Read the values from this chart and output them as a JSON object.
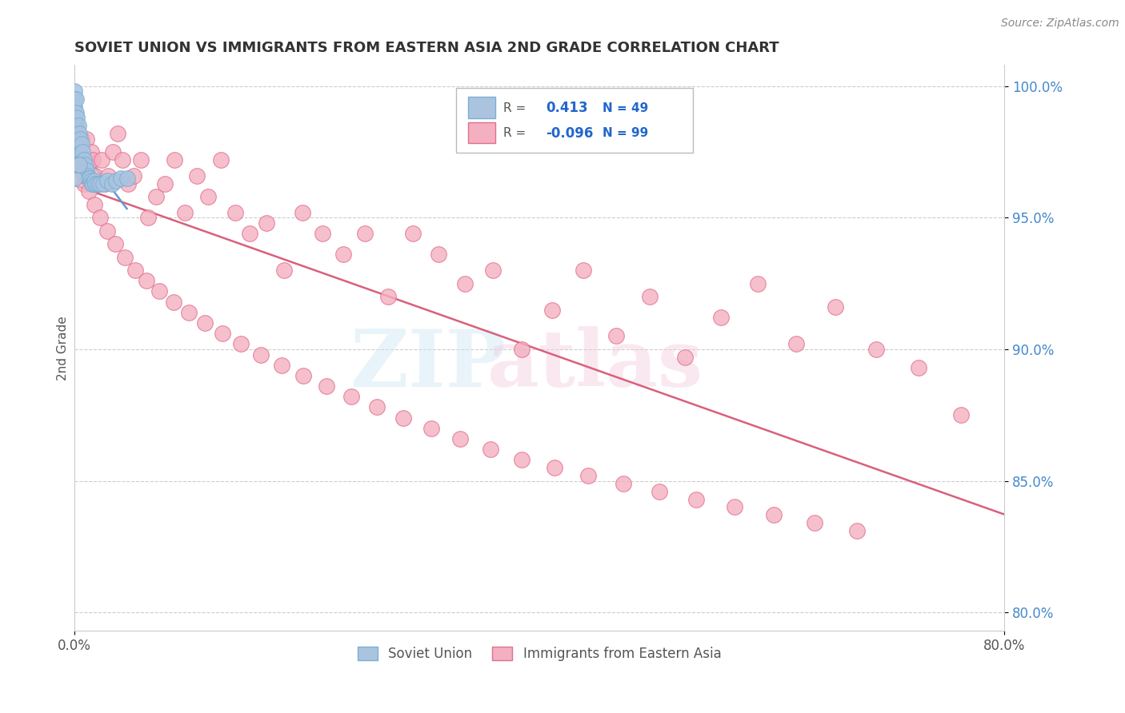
{
  "title": "SOVIET UNION VS IMMIGRANTS FROM EASTERN ASIA 2ND GRADE CORRELATION CHART",
  "source": "Source: ZipAtlas.com",
  "ylabel": "2nd Grade",
  "xlim": [
    0.0,
    0.8
  ],
  "ylim": [
    0.793,
    1.008
  ],
  "xticks": [
    0.0,
    0.8
  ],
  "xtick_labels": [
    "0.0%",
    "80.0%"
  ],
  "yticks": [
    0.8,
    0.85,
    0.9,
    0.95,
    1.0
  ],
  "ytick_labels": [
    "80.0%",
    "85.0%",
    "90.0%",
    "95.0%",
    "100.0%"
  ],
  "legend_R1": "0.413",
  "legend_N1": "49",
  "legend_R2": "-0.096",
  "legend_N2": "99",
  "soviet_color": "#aac4e0",
  "eastern_color": "#f4afc0",
  "soviet_edge": "#7bafd4",
  "eastern_edge": "#e07090",
  "trend_blue": "#6699cc",
  "trend_pink": "#d9607a",
  "background": "#ffffff",
  "grid_color": "#cccccc",
  "soviet_points_x": [
    0.0,
    0.0,
    0.0,
    0.0,
    0.0,
    0.0,
    0.0,
    0.0,
    0.001,
    0.001,
    0.001,
    0.001,
    0.001,
    0.002,
    0.002,
    0.002,
    0.003,
    0.003,
    0.004,
    0.004,
    0.005,
    0.005,
    0.006,
    0.007,
    0.008,
    0.009,
    0.01,
    0.011,
    0.012,
    0.013,
    0.014,
    0.015,
    0.016,
    0.017,
    0.018,
    0.02,
    0.022,
    0.025,
    0.028,
    0.032,
    0.036,
    0.04,
    0.045,
    0.0,
    0.0,
    0.001,
    0.002,
    0.003,
    0.004
  ],
  "soviet_points_y": [
    0.998,
    0.995,
    0.992,
    0.988,
    0.985,
    0.982,
    0.978,
    0.975,
    0.995,
    0.99,
    0.985,
    0.98,
    0.975,
    0.988,
    0.982,
    0.975,
    0.985,
    0.978,
    0.982,
    0.975,
    0.98,
    0.974,
    0.978,
    0.975,
    0.972,
    0.97,
    0.968,
    0.966,
    0.965,
    0.965,
    0.964,
    0.963,
    0.963,
    0.964,
    0.963,
    0.963,
    0.963,
    0.963,
    0.964,
    0.963,
    0.964,
    0.965,
    0.965,
    0.97,
    0.965,
    0.97,
    0.97,
    0.97,
    0.97
  ],
  "eastern_points_x": [
    0.0,
    0.0,
    0.001,
    0.001,
    0.002,
    0.003,
    0.004,
    0.005,
    0.006,
    0.007,
    0.008,
    0.009,
    0.01,
    0.011,
    0.012,
    0.014,
    0.016,
    0.018,
    0.02,
    0.023,
    0.026,
    0.029,
    0.033,
    0.037,
    0.041,
    0.046,
    0.051,
    0.057,
    0.063,
    0.07,
    0.078,
    0.086,
    0.095,
    0.105,
    0.115,
    0.126,
    0.138,
    0.151,
    0.165,
    0.18,
    0.196,
    0.213,
    0.231,
    0.25,
    0.27,
    0.291,
    0.313,
    0.336,
    0.36,
    0.385,
    0.411,
    0.438,
    0.466,
    0.495,
    0.525,
    0.556,
    0.588,
    0.621,
    0.655,
    0.69,
    0.726,
    0.763,
    0.003,
    0.005,
    0.008,
    0.012,
    0.017,
    0.022,
    0.028,
    0.035,
    0.043,
    0.052,
    0.062,
    0.073,
    0.085,
    0.098,
    0.112,
    0.127,
    0.143,
    0.16,
    0.178,
    0.197,
    0.217,
    0.238,
    0.26,
    0.283,
    0.307,
    0.332,
    0.358,
    0.385,
    0.413,
    0.442,
    0.472,
    0.503,
    0.535,
    0.568,
    0.602,
    0.637,
    0.673
  ],
  "eastern_points_y": [
    0.98,
    0.972,
    0.985,
    0.975,
    0.98,
    0.972,
    0.98,
    0.972,
    0.98,
    0.972,
    0.963,
    0.972,
    0.98,
    0.972,
    0.972,
    0.975,
    0.972,
    0.966,
    0.963,
    0.972,
    0.963,
    0.966,
    0.975,
    0.982,
    0.972,
    0.963,
    0.966,
    0.972,
    0.95,
    0.958,
    0.963,
    0.972,
    0.952,
    0.966,
    0.958,
    0.972,
    0.952,
    0.944,
    0.948,
    0.93,
    0.952,
    0.944,
    0.936,
    0.944,
    0.92,
    0.944,
    0.936,
    0.925,
    0.93,
    0.9,
    0.915,
    0.93,
    0.905,
    0.92,
    0.897,
    0.912,
    0.925,
    0.902,
    0.916,
    0.9,
    0.893,
    0.875,
    0.978,
    0.972,
    0.966,
    0.96,
    0.955,
    0.95,
    0.945,
    0.94,
    0.935,
    0.93,
    0.926,
    0.922,
    0.918,
    0.914,
    0.91,
    0.906,
    0.902,
    0.898,
    0.894,
    0.89,
    0.886,
    0.882,
    0.878,
    0.874,
    0.87,
    0.866,
    0.862,
    0.858,
    0.855,
    0.852,
    0.849,
    0.846,
    0.843,
    0.84,
    0.837,
    0.834,
    0.831
  ]
}
